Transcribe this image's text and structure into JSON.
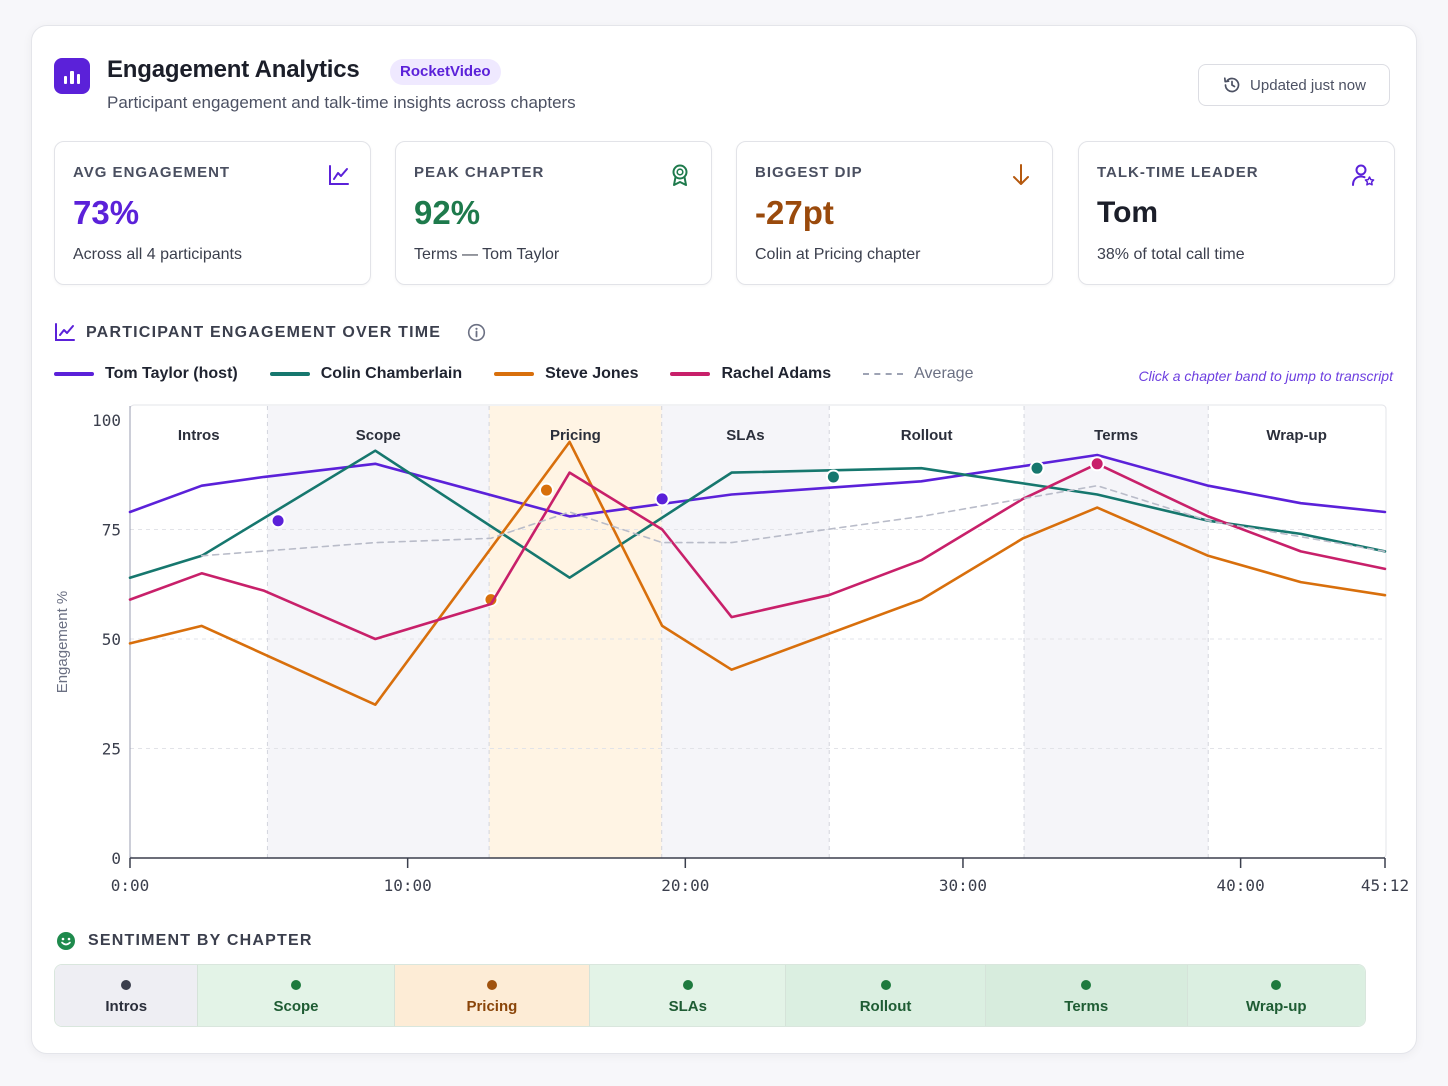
{
  "header": {
    "title": "Engagement Analytics",
    "badge": "RocketVideo",
    "subtitle": "Participant engagement and talk-time insights across chapters",
    "updated_label": "Updated just now",
    "icons": {
      "app": "bar-chart-icon",
      "updated": "history-icon"
    }
  },
  "stats": [
    {
      "label": "AVG ENGAGEMENT",
      "value": "73%",
      "sub": "Across all 4 participants",
      "color": "#5b21d9",
      "icon": "line-chart-icon"
    },
    {
      "label": "PEAK CHAPTER",
      "value": "92%",
      "sub": "Terms — Tom Taylor",
      "color": "#1e7a4c",
      "icon": "award-icon"
    },
    {
      "label": "BIGGEST DIP",
      "value": "-27pt",
      "sub": "Colin at Pricing chapter",
      "color": "#9a4a0c",
      "icon": "arrow-down-icon"
    },
    {
      "label": "TALK-TIME LEADER",
      "value": "Tom",
      "sub": "38% of total call time",
      "color": "#1b1e29",
      "icon": "user-star-icon"
    }
  ],
  "engagement_section": {
    "title": "PARTICIPANT ENGAGEMENT OVER TIME",
    "hint": "Click a chapter band to jump to transcript",
    "average_label": "Average"
  },
  "chart_data": {
    "type": "line",
    "ylabel": "Engagement %",
    "xlabel": "",
    "ylim": [
      0,
      100
    ],
    "yticks": [
      0,
      25,
      50,
      75,
      100
    ],
    "xlim_seconds": [
      0,
      2712
    ],
    "xticks": [
      {
        "label": "0:00",
        "t": 0
      },
      {
        "label": "10:00",
        "t": 600
      },
      {
        "label": "20:00",
        "t": 1200
      },
      {
        "label": "30:00",
        "t": 1800
      },
      {
        "label": "40:00",
        "t": 2400
      },
      {
        "label": "45:12",
        "t": 2712
      }
    ],
    "chapters": [
      {
        "name": "Intros",
        "start": 0,
        "end": 297
      },
      {
        "name": "Scope",
        "start": 297,
        "end": 776
      },
      {
        "name": "Pricing",
        "start": 776,
        "end": 1149
      },
      {
        "name": "SLAs",
        "start": 1149,
        "end": 1511
      },
      {
        "name": "Rollout",
        "start": 1511,
        "end": 1932
      },
      {
        "name": "Terms",
        "start": 1932,
        "end": 2330
      },
      {
        "name": "Wrap-up",
        "start": 2330,
        "end": 2712
      }
    ],
    "grid": true,
    "legend": "top-left",
    "series": [
      {
        "name": "Tom Taylor (host)",
        "color": "#5b21d9",
        "points": [
          [
            0,
            79
          ],
          [
            155,
            85
          ],
          [
            290,
            87
          ],
          [
            530,
            90
          ],
          [
            950,
            78
          ],
          [
            1300,
            83
          ],
          [
            1710,
            86
          ],
          [
            2090,
            92
          ],
          [
            2330,
            85
          ],
          [
            2530,
            81
          ],
          [
            2712,
            79
          ]
        ],
        "markers": [
          [
            320,
            77
          ],
          [
            1150,
            82
          ]
        ]
      },
      {
        "name": "Colin Chamberlain",
        "color": "#16776e",
        "points": [
          [
            0,
            64
          ],
          [
            155,
            69
          ],
          [
            530,
            93
          ],
          [
            950,
            64
          ],
          [
            1300,
            88
          ],
          [
            1710,
            89
          ],
          [
            2090,
            83
          ],
          [
            2330,
            77
          ],
          [
            2530,
            74
          ],
          [
            2712,
            70
          ]
        ],
        "markers": [
          [
            1520,
            87
          ],
          [
            1960,
            89
          ]
        ]
      },
      {
        "name": "Steve Jones",
        "color": "#d86f0c",
        "points": [
          [
            0,
            49
          ],
          [
            155,
            53
          ],
          [
            530,
            35
          ],
          [
            950,
            95
          ],
          [
            1150,
            53
          ],
          [
            1300,
            43
          ],
          [
            1710,
            59
          ],
          [
            1930,
            73
          ],
          [
            2090,
            80
          ],
          [
            2330,
            69
          ],
          [
            2530,
            63
          ],
          [
            2712,
            60
          ]
        ],
        "markers": [
          [
            780,
            59
          ],
          [
            900,
            84
          ]
        ]
      },
      {
        "name": "Rachel Adams",
        "color": "#c8206a",
        "points": [
          [
            0,
            59
          ],
          [
            155,
            65
          ],
          [
            290,
            61
          ],
          [
            530,
            50
          ],
          [
            780,
            58
          ],
          [
            950,
            88
          ],
          [
            1150,
            75
          ],
          [
            1300,
            55
          ],
          [
            1510,
            60
          ],
          [
            1710,
            68
          ],
          [
            1930,
            82
          ],
          [
            2090,
            90
          ],
          [
            2330,
            78
          ],
          [
            2530,
            70
          ],
          [
            2712,
            66
          ]
        ],
        "markers": [
          [
            2090,
            90
          ]
        ]
      },
      {
        "name": "Average",
        "color": "#b9bcc9",
        "dashed": true,
        "points": [
          [
            155,
            69
          ],
          [
            530,
            72
          ],
          [
            780,
            73
          ],
          [
            950,
            79
          ],
          [
            1150,
            72
          ],
          [
            1300,
            72
          ],
          [
            1710,
            78
          ],
          [
            2090,
            85
          ],
          [
            2330,
            77
          ],
          [
            2712,
            70
          ]
        ]
      }
    ]
  },
  "sentiment": {
    "title": "SENTIMENT BY CHAPTER",
    "chapters": [
      {
        "name": "Intros",
        "start": 0,
        "end": 297,
        "bg": "#eeeef3",
        "dot": "#3b3f4d",
        "text": "#2b2f3b"
      },
      {
        "name": "Scope",
        "start": 297,
        "end": 703,
        "bg": "#e3f3e7",
        "dot": "#1e7a3e",
        "text": "#1e5c33"
      },
      {
        "name": "Pricing",
        "start": 703,
        "end": 1108,
        "bg": "#fdecd6",
        "dot": "#a0520e",
        "text": "#8a4509"
      },
      {
        "name": "SLAs",
        "start": 1108,
        "end": 1514,
        "bg": "#e3f3e7",
        "dot": "#1e7a3e",
        "text": "#1e5c33"
      },
      {
        "name": "Rollout",
        "start": 1514,
        "end": 1927,
        "bg": "#dbefe1",
        "dot": "#1e7a3e",
        "text": "#1e5c33"
      },
      {
        "name": "Terms",
        "start": 1927,
        "end": 2345,
        "bg": "#d7ecdd",
        "dot": "#1e7a3e",
        "text": "#1e5c33"
      },
      {
        "name": "Wrap-up",
        "start": 2345,
        "end": 2712,
        "bg": "#dbefe1",
        "dot": "#1e7a3e",
        "text": "#1e5c33"
      }
    ]
  }
}
